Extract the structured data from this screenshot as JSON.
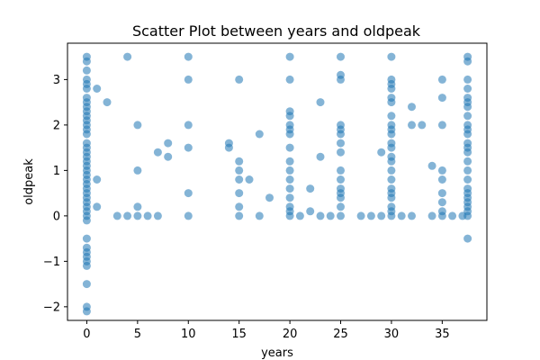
{
  "chart_data": {
    "type": "scatter",
    "title": "Scatter Plot between years and oldpeak",
    "xlabel": "years",
    "ylabel": "oldpeak",
    "xlim": [
      -1.9,
      39.4
    ],
    "ylim": [
      -2.3,
      3.8
    ],
    "xticks": [
      0,
      5,
      10,
      15,
      20,
      25,
      30,
      35
    ],
    "xtick_labels": [
      "0",
      "5",
      "10",
      "15",
      "20",
      "25",
      "30",
      "35"
    ],
    "yticks": [
      -2,
      -1,
      0,
      1,
      2,
      3
    ],
    "ytick_labels": [
      "−2",
      "−1",
      "0",
      "1",
      "2",
      "3"
    ],
    "grid": false,
    "marker_color": "#1f77b4",
    "marker_alpha": 0.55,
    "series": [
      {
        "points": [
          [
            0,
            3.5
          ],
          [
            0,
            3.4
          ],
          [
            0,
            3.2
          ],
          [
            0,
            3.0
          ],
          [
            0,
            2.9
          ],
          [
            0,
            2.8
          ],
          [
            0,
            2.6
          ],
          [
            0,
            2.5
          ],
          [
            0,
            2.4
          ],
          [
            0,
            2.3
          ],
          [
            0,
            2.2
          ],
          [
            0,
            2.1
          ],
          [
            0,
            2.0
          ],
          [
            0,
            1.9
          ],
          [
            0,
            1.8
          ],
          [
            0,
            1.6
          ],
          [
            0,
            1.5
          ],
          [
            0,
            1.4
          ],
          [
            0,
            1.3
          ],
          [
            0,
            1.2
          ],
          [
            0,
            1.1
          ],
          [
            0,
            1.0
          ],
          [
            0,
            0.9
          ],
          [
            0,
            0.8
          ],
          [
            0,
            0.7
          ],
          [
            0,
            0.6
          ],
          [
            0,
            0.5
          ],
          [
            0,
            0.4
          ],
          [
            0,
            0.3
          ],
          [
            0,
            0.2
          ],
          [
            0,
            0.1
          ],
          [
            0,
            0.0
          ],
          [
            0,
            -0.1
          ],
          [
            0,
            -0.5
          ],
          [
            0,
            -0.7
          ],
          [
            0,
            -0.8
          ],
          [
            0,
            -0.9
          ],
          [
            0,
            -1.0
          ],
          [
            0,
            -1.1
          ],
          [
            0,
            -1.5
          ],
          [
            0,
            -2.0
          ],
          [
            0,
            -2.1
          ],
          [
            1,
            2.8
          ],
          [
            1,
            0.8
          ],
          [
            1,
            0.2
          ],
          [
            2,
            2.5
          ],
          [
            3,
            0
          ],
          [
            4,
            3.5
          ],
          [
            4,
            0
          ],
          [
            5,
            2.0
          ],
          [
            5,
            1.0
          ],
          [
            5,
            0.2
          ],
          [
            5,
            0
          ],
          [
            6,
            0
          ],
          [
            7,
            1.4
          ],
          [
            7,
            0
          ],
          [
            8,
            1.6
          ],
          [
            8,
            1.3
          ],
          [
            10,
            3.5
          ],
          [
            10,
            3.0
          ],
          [
            10,
            2.0
          ],
          [
            10,
            1.5
          ],
          [
            10,
            0.5
          ],
          [
            10,
            0
          ],
          [
            14,
            1.6
          ],
          [
            14,
            1.5
          ],
          [
            15,
            3.0
          ],
          [
            15,
            1.2
          ],
          [
            15,
            1.0
          ],
          [
            15,
            0.8
          ],
          [
            15,
            0.5
          ],
          [
            15,
            0.2
          ],
          [
            15,
            0
          ],
          [
            16,
            0.8
          ],
          [
            17,
            1.8
          ],
          [
            17,
            0
          ],
          [
            18,
            0.4
          ],
          [
            20,
            3.5
          ],
          [
            20,
            3.0
          ],
          [
            20,
            2.3
          ],
          [
            20,
            2.2
          ],
          [
            20,
            2.0
          ],
          [
            20,
            1.9
          ],
          [
            20,
            1.8
          ],
          [
            20,
            1.5
          ],
          [
            20,
            1.2
          ],
          [
            20,
            1.0
          ],
          [
            20,
            0.8
          ],
          [
            20,
            0.6
          ],
          [
            20,
            0.4
          ],
          [
            20,
            0.2
          ],
          [
            20,
            0.1
          ],
          [
            20,
            0
          ],
          [
            21,
            0
          ],
          [
            22,
            0.6
          ],
          [
            22,
            0.1
          ],
          [
            23,
            2.5
          ],
          [
            23,
            1.3
          ],
          [
            23,
            0
          ],
          [
            24,
            0
          ],
          [
            25,
            3.5
          ],
          [
            25,
            3.1
          ],
          [
            25,
            3.0
          ],
          [
            25,
            2.0
          ],
          [
            25,
            1.9
          ],
          [
            25,
            1.8
          ],
          [
            25,
            1.6
          ],
          [
            25,
            1.4
          ],
          [
            25,
            1.0
          ],
          [
            25,
            0.8
          ],
          [
            25,
            0.6
          ],
          [
            25,
            0.5
          ],
          [
            25,
            0.4
          ],
          [
            25,
            0.2
          ],
          [
            25,
            0
          ],
          [
            27,
            0
          ],
          [
            28,
            0
          ],
          [
            29,
            1.4
          ],
          [
            29,
            0
          ],
          [
            30,
            3.5
          ],
          [
            30,
            3.0
          ],
          [
            30,
            2.9
          ],
          [
            30,
            2.8
          ],
          [
            30,
            2.6
          ],
          [
            30,
            2.5
          ],
          [
            30,
            2.2
          ],
          [
            30,
            2.0
          ],
          [
            30,
            1.9
          ],
          [
            30,
            1.8
          ],
          [
            30,
            1.6
          ],
          [
            30,
            1.5
          ],
          [
            30,
            1.3
          ],
          [
            30,
            1.2
          ],
          [
            30,
            1.0
          ],
          [
            30,
            0.8
          ],
          [
            30,
            0.6
          ],
          [
            30,
            0.5
          ],
          [
            30,
            0.4
          ],
          [
            30,
            0.2
          ],
          [
            30,
            0.1
          ],
          [
            30,
            0
          ],
          [
            31,
            0
          ],
          [
            32,
            2.4
          ],
          [
            32,
            2.0
          ],
          [
            32,
            0
          ],
          [
            33,
            2.0
          ],
          [
            34,
            1.1
          ],
          [
            34,
            0
          ],
          [
            35,
            3.0
          ],
          [
            35,
            2.6
          ],
          [
            35,
            2.0
          ],
          [
            35,
            1.0
          ],
          [
            35,
            0.8
          ],
          [
            35,
            0.5
          ],
          [
            35,
            0.3
          ],
          [
            35,
            0.1
          ],
          [
            35,
            0
          ],
          [
            36,
            0
          ],
          [
            37,
            0
          ],
          [
            37.5,
            3.5
          ],
          [
            37.5,
            3.4
          ],
          [
            37.5,
            3.0
          ],
          [
            37.5,
            2.8
          ],
          [
            37.5,
            2.6
          ],
          [
            37.5,
            2.5
          ],
          [
            37.5,
            2.4
          ],
          [
            37.5,
            2.2
          ],
          [
            37.5,
            2.0
          ],
          [
            37.5,
            1.9
          ],
          [
            37.5,
            1.8
          ],
          [
            37.5,
            1.6
          ],
          [
            37.5,
            1.5
          ],
          [
            37.5,
            1.4
          ],
          [
            37.5,
            1.2
          ],
          [
            37.5,
            1.0
          ],
          [
            37.5,
            0.8
          ],
          [
            37.5,
            0.6
          ],
          [
            37.5,
            0.5
          ],
          [
            37.5,
            0.4
          ],
          [
            37.5,
            0.3
          ],
          [
            37.5,
            0.2
          ],
          [
            37.5,
            0.1
          ],
          [
            37.5,
            0
          ],
          [
            37.5,
            -0.5
          ]
        ]
      }
    ]
  }
}
